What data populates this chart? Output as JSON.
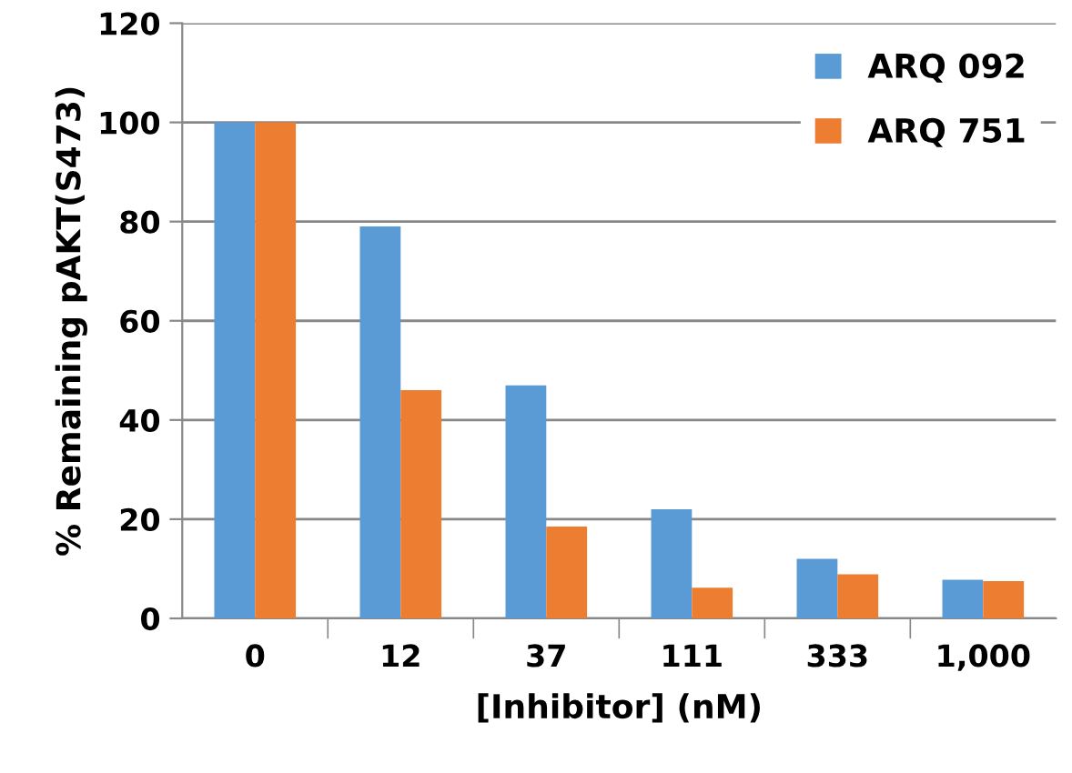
{
  "chart_data": {
    "type": "bar",
    "xlabel": "[Inhibitor] (nM)",
    "ylabel": "% Remaining pAKT(S473)",
    "categories": [
      "0",
      "12",
      "37",
      "111",
      "333",
      "1,000"
    ],
    "series": [
      {
        "name": "ARQ 092",
        "color": "#5b9bd5",
        "values": [
          100,
          79,
          47,
          22,
          12,
          7.8
        ]
      },
      {
        "name": "ARQ 751",
        "color": "#ed7d31",
        "values": [
          100,
          46,
          18.5,
          6.2,
          8.9,
          7.5
        ]
      }
    ],
    "ylim": [
      0,
      120
    ],
    "yticks": [
      0,
      20,
      40,
      60,
      80,
      100,
      120
    ],
    "grid": "y",
    "legend": "top right"
  }
}
